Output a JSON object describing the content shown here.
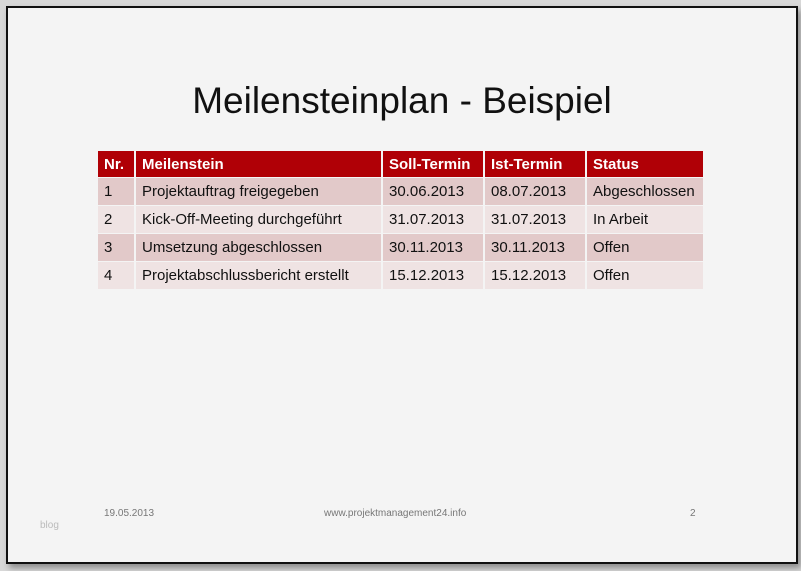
{
  "title": "Meilensteinplan - Beispiel",
  "table": {
    "headers": [
      "Nr.",
      "Meilenstein",
      "Soll-Termin",
      "Ist-Termin",
      "Status"
    ],
    "rows": [
      [
        "1",
        "Projektauftrag freigegeben",
        "30.06.2013",
        "08.07.2013",
        "Abgeschlossen"
      ],
      [
        "2",
        "Kick-Off-Meeting durchgeführt",
        "31.07.2013",
        "31.07.2013",
        "In Arbeit"
      ],
      [
        "3",
        "Umsetzung abgeschlossen",
        "30.11.2013",
        "30.11.2013",
        "Offen"
      ],
      [
        "4",
        "Projektabschlussbericht erstellt",
        "15.12.2013",
        "15.12.2013",
        "Offen"
      ]
    ]
  },
  "footer": {
    "date": "19.05.2013",
    "website": "www.projektmanagement24.info",
    "page": "2",
    "watermark": "blog"
  },
  "colors": {
    "header": "#b00006",
    "row_odd": "#e2c9c9",
    "row_even": "#efe3e3"
  }
}
